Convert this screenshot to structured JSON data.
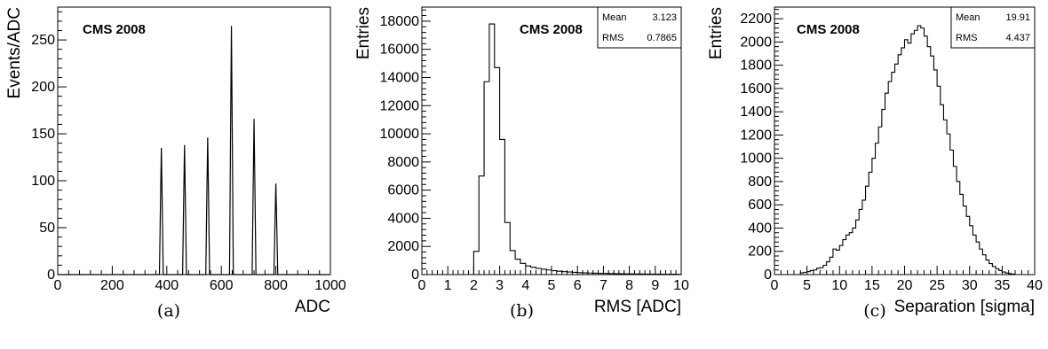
{
  "chart_data": [
    {
      "type": "line",
      "caption": "(a)",
      "label": "CMS 2008",
      "xlabel": "ADC",
      "ylabel": "Events/ADC",
      "xlim": [
        0,
        1000
      ],
      "ylim": [
        0,
        285
      ],
      "xticks": [
        0,
        200,
        400,
        600,
        800,
        1000
      ],
      "yticks": [
        0,
        50,
        100,
        150,
        200,
        250
      ],
      "peaks": [
        {
          "x": 380,
          "y": 135
        },
        {
          "x": 465,
          "y": 138
        },
        {
          "x": 550,
          "y": 146
        },
        {
          "x": 637,
          "y": 265
        },
        {
          "x": 720,
          "y": 166
        },
        {
          "x": 800,
          "y": 97
        }
      ]
    },
    {
      "type": "bar",
      "caption": "(b)",
      "label": "CMS 2008",
      "xlabel": "RMS [ADC]",
      "ylabel": "Entries",
      "xlim": [
        0,
        10
      ],
      "ylim": [
        0,
        19000
      ],
      "xticks": [
        0,
        1,
        2,
        3,
        4,
        5,
        6,
        7,
        8,
        9,
        10
      ],
      "yticks": [
        0,
        2000,
        4000,
        6000,
        8000,
        10000,
        12000,
        14000,
        16000,
        18000
      ],
      "stats": {
        "mean_label": "Mean",
        "mean": "3.123",
        "rms_label": "RMS",
        "rms": "0.7865"
      },
      "bin_start": 2.0,
      "bin_width": 0.2,
      "values": [
        1650,
        7000,
        13700,
        17800,
        14700,
        9600,
        3700,
        1700,
        1100,
        800,
        620,
        520,
        440,
        380,
        330,
        280,
        240,
        210,
        185,
        160,
        140,
        125,
        110,
        100,
        90,
        80,
        72,
        65,
        60,
        55,
        50,
        45,
        42,
        39,
        36,
        33,
        30,
        28,
        25,
        22
      ]
    },
    {
      "type": "bar",
      "caption": "(c)",
      "label": "CMS 2008",
      "xlabel": "Separation [sigma]",
      "ylabel": "Entries",
      "xlim": [
        0,
        40
      ],
      "ylim": [
        0,
        2300
      ],
      "xticks": [
        0,
        5,
        10,
        15,
        20,
        25,
        30,
        35,
        40
      ],
      "yticks": [
        0,
        200,
        400,
        600,
        800,
        1000,
        1200,
        1400,
        1600,
        1800,
        2000,
        2200
      ],
      "stats": {
        "mean_label": "Mean",
        "mean": "19.91",
        "rms_label": "RMS",
        "rms": "4.437"
      },
      "bin_start": 4.0,
      "bin_width": 0.5,
      "values": [
        15,
        20,
        25,
        35,
        40,
        55,
        60,
        80,
        110,
        150,
        220,
        210,
        250,
        300,
        340,
        360,
        400,
        470,
        560,
        640,
        760,
        880,
        1000,
        1130,
        1270,
        1420,
        1560,
        1660,
        1740,
        1810,
        1890,
        1950,
        2020,
        1990,
        2070,
        2100,
        2140,
        2120,
        2050,
        1960,
        1880,
        1760,
        1620,
        1460,
        1330,
        1210,
        1070,
        930,
        800,
        690,
        590,
        500,
        420,
        340,
        280,
        220,
        170,
        125,
        95,
        70,
        50,
        35,
        22,
        14,
        8,
        4
      ]
    }
  ]
}
